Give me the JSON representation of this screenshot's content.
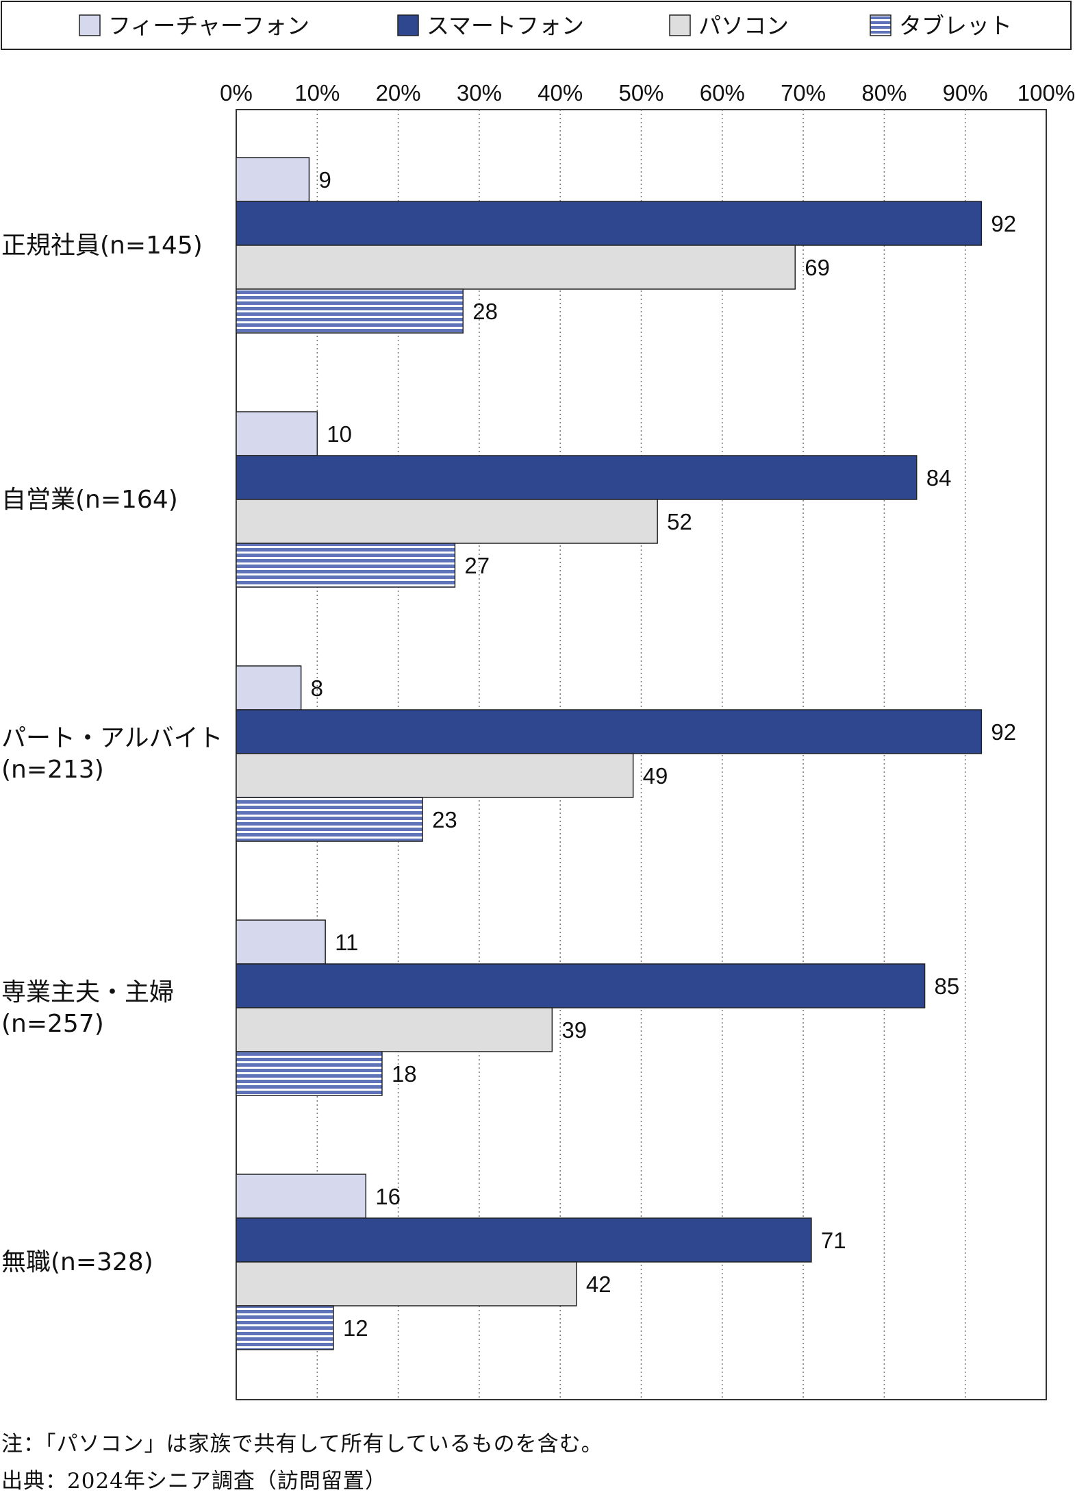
{
  "chart_data": {
    "type": "bar",
    "orientation": "horizontal",
    "categories": [
      [
        "正規社員(n=145)"
      ],
      [
        "自営業(n=164)"
      ],
      [
        "パート・アルバイト",
        "(n=213)"
      ],
      [
        "専業主夫・主婦",
        "(n=257)"
      ],
      [
        "無職(n=328)"
      ]
    ],
    "series": [
      {
        "name": "フィーチャーフォン",
        "values": [
          9,
          10,
          8,
          11,
          16
        ],
        "color": "#d6d9ee",
        "pattern": "solid"
      },
      {
        "name": "スマートフォン",
        "values": [
          92,
          84,
          92,
          85,
          71
        ],
        "color": "#2e478e",
        "pattern": "solid"
      },
      {
        "name": "パソコン",
        "values": [
          69,
          52,
          49,
          39,
          42
        ],
        "color": "#dedede",
        "pattern": "solid"
      },
      {
        "name": "タブレット",
        "values": [
          28,
          27,
          23,
          18,
          12
        ],
        "color": "#5e73b8",
        "pattern": "horizontal-stripes"
      }
    ],
    "xlim": [
      0,
      100
    ],
    "xticks": [
      "0%",
      "10%",
      "20%",
      "30%",
      "40%",
      "50%",
      "60%",
      "70%",
      "80%",
      "90%",
      "100%"
    ],
    "grid": "vertical-dotted",
    "legend_position": "top"
  },
  "notes": [
    "注：「パソコン」は家族で共有して所有しているものを含む。",
    "出典：2024年シニア調査（訪問留置）"
  ]
}
